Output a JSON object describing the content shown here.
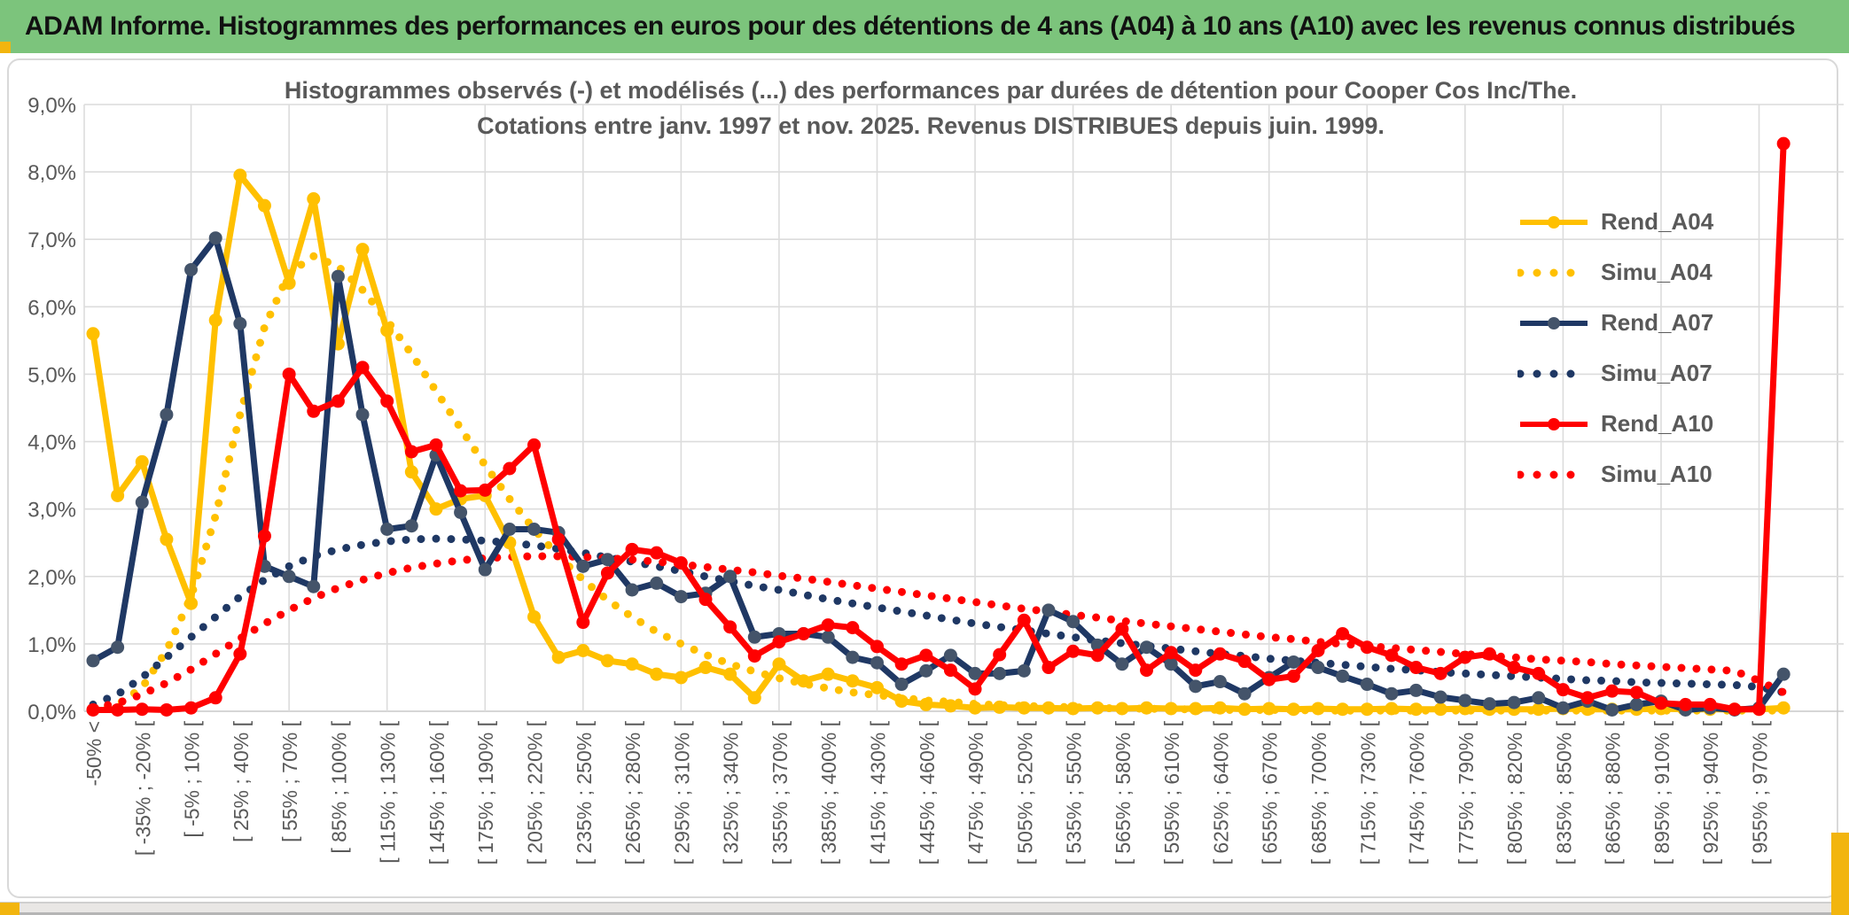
{
  "header": {
    "title": "ADAM Informe. Histogrammes des performances en euros pour des détentions de 4 ans (A04) à 10 ans (A10) avec les revenus connus distribués"
  },
  "chart": {
    "title_line1": "Histogrammes observés (-) et modélisés (...) des performances par durées de détention pour Cooper Cos Inc/The.",
    "title_line2": "Cotations entre janv. 1997 et nov. 2025. Revenus DISTRIBUES depuis juin. 1999.",
    "y_ticks": [
      "0,0%",
      "1,0%",
      "2,0%",
      "3,0%",
      "4,0%",
      "5,0%",
      "6,0%",
      "7,0%",
      "8,0%",
      "9,0%"
    ],
    "grid_color": "#dcdcdc",
    "axis_text_color": "#595959"
  },
  "chart_data": {
    "type": "line",
    "title": "Histogrammes observés (-) et modélisés (...) des performances par durées de détention pour Cooper Cos Inc/The. Cotations entre janv. 1997 et nov. 2025. Revenus DISTRIBUES depuis juin. 1999.",
    "xlabel": "",
    "ylabel": "",
    "ylim": [
      0,
      9
    ],
    "y_unit": "percent",
    "grid": true,
    "legend_position": "right",
    "categories": [
      "-50% <",
      "",
      "[ -35% ; -20% [",
      "",
      "[ -5% ; 10% [",
      "",
      "[ 25% ; 40% [",
      "",
      "[ 55% ; 70% [",
      "",
      "[ 85% ; 100% [",
      "",
      "[ 115% ; 130% [",
      "",
      "[ 145% ; 160% [",
      "",
      "[ 175% ; 190% [",
      "",
      "[ 205% ; 220% [",
      "",
      "[ 235% ; 250% [",
      "",
      "[ 265% ; 280% [",
      "",
      "[ 295% ; 310% [",
      "",
      "[ 325% ; 340% [",
      "",
      "[ 355% ; 370% [",
      "",
      "[ 385% ; 400% [",
      "",
      "[ 415% ; 430% [",
      "",
      "[ 445% ; 460% [",
      "",
      "[ 475% ; 490% [",
      "",
      "[ 505% ; 520% [",
      "",
      "[ 535% ; 550% [",
      "",
      "[ 565% ; 580% [",
      "",
      "[ 595% ; 610% [",
      "",
      "[ 625% ; 640% [",
      "",
      "[ 655% ; 670% [",
      "",
      "[ 685% ; 700% [",
      "",
      "[ 715% ; 730% [",
      "",
      "[ 745% ; 760% [",
      "",
      "[ 775% ; 790% [",
      "",
      "[ 805% ; 820% [",
      "",
      "[ 835% ; 850% [",
      "",
      "[ 865% ; 880% [",
      "",
      "[ 895% ; 910% [",
      "",
      "[ 925% ; 940% [",
      "",
      "[ 955% ; 970% [",
      ""
    ],
    "series": [
      {
        "name": "Rend_A04",
        "color": "#FFC000",
        "marker_color": "#FFC000",
        "dashed": false,
        "values": [
          5.6,
          3.2,
          3.7,
          2.55,
          1.6,
          5.8,
          7.95,
          7.5,
          6.35,
          7.6,
          5.45,
          6.85,
          5.65,
          3.55,
          3.0,
          3.15,
          3.2,
          2.5,
          1.4,
          0.8,
          0.9,
          0.75,
          0.7,
          0.55,
          0.5,
          0.65,
          0.55,
          0.2,
          0.7,
          0.45,
          0.55,
          0.45,
          0.35,
          0.15,
          0.1,
          0.08,
          0.05,
          0.06,
          0.05,
          0.05,
          0.04,
          0.05,
          0.04,
          0.05,
          0.04,
          0.04,
          0.05,
          0.03,
          0.04,
          0.03,
          0.04,
          0.03,
          0.03,
          0.04,
          0.03,
          0.03,
          0.04,
          0.03,
          0.03,
          0.03,
          0.04,
          0.03,
          0.03,
          0.03,
          0.04,
          0.03,
          0.03,
          0.03,
          0.03,
          0.05
        ]
      },
      {
        "name": "Simu_A04",
        "color": "#FFC000",
        "dashed": true,
        "values": [
          0.02,
          0.1,
          0.35,
          0.9,
          1.7,
          2.9,
          4.4,
          5.7,
          6.5,
          6.75,
          6.6,
          6.25,
          5.8,
          5.3,
          4.75,
          4.2,
          3.65,
          3.15,
          2.7,
          2.3,
          1.95,
          1.65,
          1.4,
          1.18,
          1.0,
          0.84,
          0.7,
          0.59,
          0.49,
          0.41,
          0.34,
          0.28,
          0.24,
          0.2,
          0.16,
          0.14,
          0.11,
          0.09,
          0.08,
          0.07,
          0.06,
          0.05,
          0.04,
          0.04,
          0.03,
          0.03,
          0.02,
          0.02,
          0.02,
          0.02,
          0.01,
          0.01,
          0.01,
          0.01,
          0.01,
          0.01,
          0.01,
          0.01,
          0.01,
          0.01,
          0.01,
          0.01,
          0.01,
          0.01,
          0.01,
          0.01,
          0.01,
          0.01,
          0.01,
          0.01
        ]
      },
      {
        "name": "Rend_A07",
        "color": "#1F3864",
        "marker_color": "#44546A",
        "dashed": false,
        "values": [
          0.75,
          0.95,
          3.1,
          4.4,
          6.55,
          7.02,
          5.75,
          2.15,
          2.0,
          1.85,
          6.45,
          4.4,
          2.7,
          2.75,
          3.8,
          2.95,
          2.1,
          2.7,
          2.7,
          2.65,
          2.15,
          2.25,
          1.8,
          1.9,
          1.7,
          1.75,
          2.0,
          1.1,
          1.15,
          1.15,
          1.1,
          0.8,
          0.72,
          0.4,
          0.6,
          0.83,
          0.56,
          0.56,
          0.6,
          1.5,
          1.33,
          0.98,
          0.7,
          0.95,
          0.7,
          0.37,
          0.44,
          0.26,
          0.5,
          0.73,
          0.65,
          0.52,
          0.4,
          0.26,
          0.31,
          0.21,
          0.16,
          0.11,
          0.13,
          0.2,
          0.05,
          0.15,
          0.02,
          0.1,
          0.15,
          0.02,
          0.05,
          0.02,
          0.05,
          0.55
        ]
      },
      {
        "name": "Simu_A07",
        "color": "#1F3864",
        "dashed": true,
        "values": [
          0.1,
          0.25,
          0.5,
          0.8,
          1.1,
          1.4,
          1.7,
          1.95,
          2.15,
          2.3,
          2.4,
          2.47,
          2.52,
          2.55,
          2.56,
          2.55,
          2.53,
          2.5,
          2.46,
          2.41,
          2.35,
          2.28,
          2.22,
          2.15,
          2.08,
          2.0,
          1.93,
          1.86,
          1.8,
          1.73,
          1.66,
          1.6,
          1.54,
          1.48,
          1.42,
          1.36,
          1.3,
          1.25,
          1.2,
          1.15,
          1.1,
          1.05,
          1.01,
          0.97,
          0.93,
          0.89,
          0.85,
          0.82,
          0.78,
          0.75,
          0.72,
          0.69,
          0.66,
          0.63,
          0.61,
          0.58,
          0.56,
          0.54,
          0.52,
          0.5,
          0.48,
          0.46,
          0.45,
          0.43,
          0.42,
          0.41,
          0.4,
          0.39,
          0.36,
          0.28
        ]
      },
      {
        "name": "Rend_A10",
        "color": "#FF0000",
        "marker_color": "#FF0000",
        "dashed": false,
        "values": [
          0.02,
          0.02,
          0.03,
          0.02,
          0.05,
          0.2,
          0.85,
          2.6,
          5.0,
          4.45,
          4.6,
          5.1,
          4.6,
          3.85,
          3.95,
          3.27,
          3.28,
          3.6,
          3.95,
          2.55,
          1.32,
          2.05,
          2.4,
          2.35,
          2.2,
          1.66,
          1.25,
          0.82,
          1.03,
          1.15,
          1.28,
          1.24,
          0.96,
          0.7,
          0.83,
          0.61,
          0.33,
          0.84,
          1.35,
          0.65,
          0.89,
          0.83,
          1.22,
          0.61,
          0.87,
          0.61,
          0.85,
          0.74,
          0.47,
          0.52,
          0.9,
          1.15,
          0.95,
          0.83,
          0.65,
          0.56,
          0.8,
          0.85,
          0.65,
          0.56,
          0.32,
          0.2,
          0.3,
          0.28,
          0.12,
          0.1,
          0.1,
          0.03,
          0.03,
          8.42
        ]
      },
      {
        "name": "Simu_A10",
        "color": "#FF0000",
        "dashed": true,
        "values": [
          0.05,
          0.12,
          0.25,
          0.42,
          0.62,
          0.85,
          1.08,
          1.3,
          1.5,
          1.68,
          1.83,
          1.95,
          2.05,
          2.13,
          2.19,
          2.24,
          2.27,
          2.29,
          2.3,
          2.3,
          2.29,
          2.27,
          2.25,
          2.22,
          2.18,
          2.14,
          2.1,
          2.06,
          2.01,
          1.97,
          1.92,
          1.87,
          1.82,
          1.77,
          1.72,
          1.67,
          1.62,
          1.57,
          1.52,
          1.48,
          1.43,
          1.39,
          1.34,
          1.3,
          1.26,
          1.22,
          1.18,
          1.14,
          1.1,
          1.07,
          1.03,
          1.0,
          0.97,
          0.94,
          0.91,
          0.88,
          0.85,
          0.82,
          0.8,
          0.77,
          0.75,
          0.73,
          0.7,
          0.68,
          0.66,
          0.64,
          0.62,
          0.6,
          0.45,
          0.28
        ]
      }
    ]
  },
  "legend": {
    "items": [
      {
        "label": "Rend_A04"
      },
      {
        "label": "Simu_A04"
      },
      {
        "label": "Rend_A07"
      },
      {
        "label": "Simu_A07"
      },
      {
        "label": "Rend_A10"
      },
      {
        "label": "Simu_A10"
      }
    ]
  }
}
